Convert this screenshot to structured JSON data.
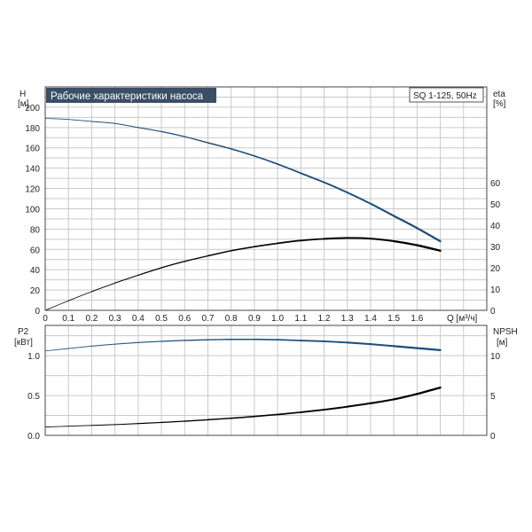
{
  "chart_data": [
    {
      "type": "line",
      "title": "Рабочие характеристики насоса",
      "model_label": "SQ 1-125, 50Hz",
      "xlabel": "Q [м³/ч]",
      "x_ticks": [
        "0",
        "0.1",
        "0.2",
        "0.3",
        "0.4",
        "0.5",
        "0.6",
        "0.7",
        "0.8",
        "0.9",
        "1.0",
        "1.1",
        "1.2",
        "1.3",
        "1.4",
        "1.5",
        "1.6"
      ],
      "xlim": [
        0,
        1.9
      ],
      "left_axis": {
        "label_line1": "H",
        "label_line2": "[м]",
        "ticks": [
          "0",
          "20",
          "40",
          "60",
          "80",
          "100",
          "120",
          "140",
          "160",
          "180",
          "200"
        ],
        "ylim": [
          0,
          220
        ]
      },
      "right_axis": {
        "label_line1": "eta",
        "label_line2": "[%]",
        "ticks": [
          "0",
          "10",
          "20",
          "30",
          "40",
          "50",
          "60"
        ],
        "ylim": [
          0,
          105
        ]
      },
      "grid": true,
      "series": [
        {
          "axis": "left",
          "color": "#1f4e79",
          "x": [
            0,
            0.1,
            0.2,
            0.3,
            0.4,
            0.5,
            0.6,
            0.7,
            0.8,
            0.9,
            1.0,
            1.1,
            1.2,
            1.3,
            1.4,
            1.5,
            1.6,
            1.7
          ],
          "y": [
            189,
            188,
            186,
            184,
            180,
            176,
            171,
            165,
            159,
            152,
            144,
            135,
            126,
            116,
            105,
            93,
            81,
            68
          ]
        },
        {
          "axis": "right",
          "color": "#000000",
          "x": [
            0,
            0.1,
            0.2,
            0.3,
            0.4,
            0.5,
            0.6,
            0.7,
            0.8,
            0.9,
            1.0,
            1.1,
            1.2,
            1.3,
            1.4,
            1.5,
            1.6,
            1.7
          ],
          "y": [
            0,
            4.5,
            8.8,
            12.8,
            16.5,
            20,
            23,
            25.6,
            28,
            29.9,
            31.5,
            32.8,
            33.6,
            34,
            33.7,
            32.5,
            30.6,
            28
          ]
        }
      ]
    },
    {
      "type": "line",
      "xlim": [
        0,
        1.9
      ],
      "left_axis": {
        "label_line1": "P2",
        "label_line2": "[кВт]",
        "ticks": [
          "0.0",
          "0.5",
          "1.0"
        ],
        "ylim": [
          0,
          1.38
        ]
      },
      "right_axis": {
        "label_line1": "NPSH",
        "label_line2": "[м]",
        "ticks": [
          "0",
          "5",
          "10"
        ],
        "ylim": [
          0,
          13.8
        ]
      },
      "grid": true,
      "series": [
        {
          "axis": "left",
          "color": "#1f4e79",
          "x": [
            0,
            0.1,
            0.2,
            0.3,
            0.4,
            0.5,
            0.6,
            0.7,
            0.8,
            0.9,
            1.0,
            1.1,
            1.2,
            1.3,
            1.4,
            1.5,
            1.6,
            1.7
          ],
          "y": [
            1.06,
            1.09,
            1.12,
            1.145,
            1.165,
            1.18,
            1.192,
            1.2,
            1.205,
            1.205,
            1.2,
            1.19,
            1.18,
            1.165,
            1.145,
            1.12,
            1.095,
            1.07
          ]
        },
        {
          "axis": "left",
          "color": "#000000",
          "x": [
            0,
            0.1,
            0.2,
            0.3,
            0.4,
            0.5,
            0.6,
            0.7,
            0.8,
            0.9,
            1.0,
            1.1,
            1.2,
            1.3,
            1.4,
            1.5,
            1.6,
            1.7
          ],
          "y": [
            0.105,
            0.115,
            0.125,
            0.135,
            0.148,
            0.162,
            0.178,
            0.196,
            0.215,
            0.237,
            0.262,
            0.29,
            0.322,
            0.36,
            0.403,
            0.452,
            0.52,
            0.6
          ]
        }
      ]
    }
  ]
}
